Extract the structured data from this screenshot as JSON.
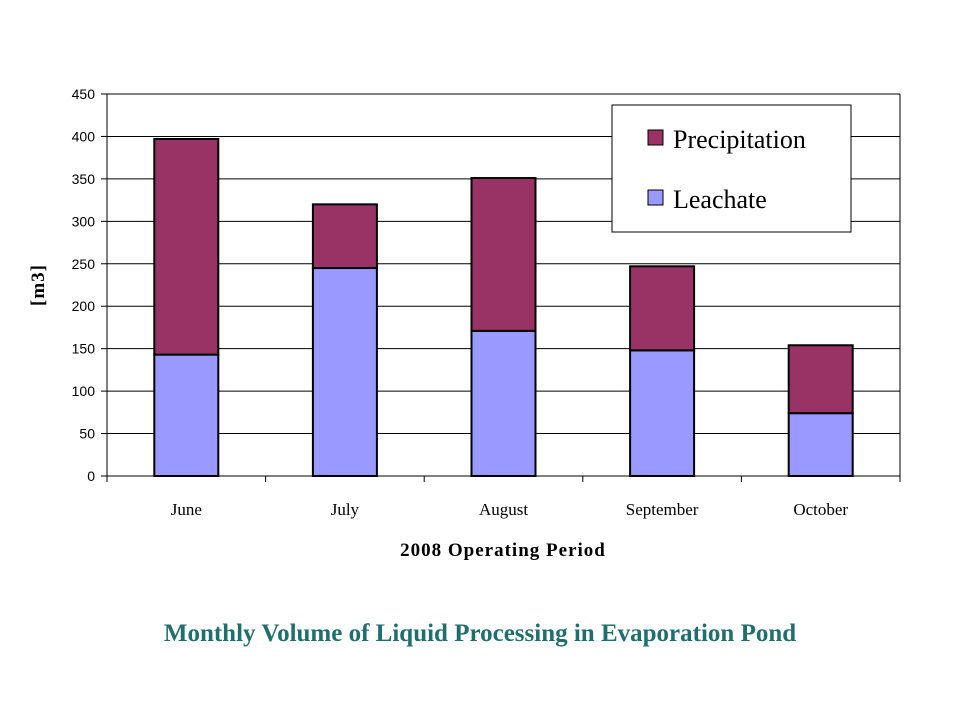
{
  "caption": "Monthly Volume of Liquid Processing in Evaporation Pond",
  "colors": {
    "leachate": "#9999ff",
    "precipitation": "#993366",
    "caption": "#1f6f6f",
    "grid": "#000000"
  },
  "chart_data": {
    "type": "bar",
    "stacked": true,
    "title": "",
    "xlabel": "2008 Operating Period",
    "ylabel": "[m3]",
    "ylim": [
      0,
      450
    ],
    "yticks": [
      0,
      50,
      100,
      150,
      200,
      250,
      300,
      350,
      400,
      450
    ],
    "grid": true,
    "legend_position": "top-right",
    "categories": [
      "June",
      "July",
      "August",
      "September",
      "October"
    ],
    "series": [
      {
        "name": "Leachate",
        "color": "#9999ff",
        "values": [
          143,
          245,
          171,
          148,
          74
        ]
      },
      {
        "name": "Precipitation",
        "color": "#993366",
        "values": [
          254,
          75,
          180,
          99,
          80
        ]
      }
    ],
    "legend": [
      {
        "label": "Precipitation",
        "color": "#993366"
      },
      {
        "label": "Leachate",
        "color": "#9999ff"
      }
    ]
  }
}
